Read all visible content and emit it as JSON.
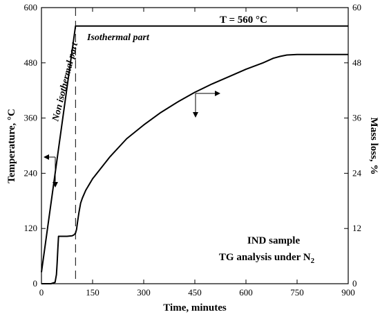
{
  "chart_data": {
    "type": "line",
    "title": "",
    "xlabel": "Time, minutes",
    "ylabel_left": "Temperature, °C",
    "ylabel_right": "Mass loss, %",
    "xlim": [
      0,
      900
    ],
    "ylim_left": [
      0,
      600
    ],
    "ylim_right": [
      0,
      60
    ],
    "x_ticks": [
      0,
      150,
      300,
      450,
      600,
      750,
      900
    ],
    "y_left_ticks": [
      0,
      120,
      240,
      360,
      480,
      600
    ],
    "y_right_ticks": [
      0,
      12,
      24,
      36,
      48,
      60
    ],
    "grid": false,
    "annotations": {
      "temperature_label": "T = 560 °C",
      "isothermal": "Isothermal part",
      "non_isothermal": "Non isothermal part",
      "sample_line1": "IND sample",
      "sample_line2_prefix": "TG analysis under N",
      "sample_line2_sub": "2"
    },
    "divider_x": 100,
    "series": [
      {
        "axis": "left",
        "x": [
          0,
          100,
          900
        ],
        "values": [
          25,
          560,
          560
        ]
      },
      {
        "axis": "right",
        "x": [
          0,
          28,
          40,
          44,
          46,
          48,
          50,
          60,
          75,
          90,
          95,
          100,
          103,
          106,
          110,
          115,
          120,
          130,
          150,
          200,
          250,
          300,
          350,
          400,
          450,
          500,
          550,
          600,
          650,
          680,
          700,
          720,
          750,
          800,
          850,
          900
        ],
        "values": [
          0,
          0,
          0.3,
          2,
          4.5,
          7.5,
          10.3,
          10.3,
          10.3,
          10.4,
          10.6,
          11.0,
          11.8,
          13.5,
          15.5,
          17.5,
          18.6,
          20.3,
          22.8,
          27.5,
          31.5,
          34.5,
          37.2,
          39.5,
          41.6,
          43.4,
          45.0,
          46.6,
          48.0,
          49.0,
          49.4,
          49.7,
          49.8,
          49.8,
          49.8,
          49.8
        ]
      }
    ]
  }
}
